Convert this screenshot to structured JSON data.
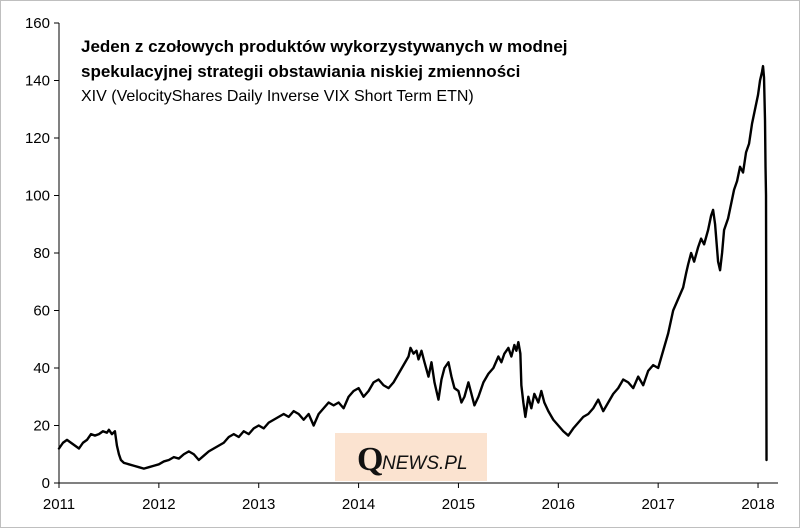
{
  "chart_data": {
    "type": "line",
    "title": "Jeden z czołowych produktów wykorzystywanych w modnej",
    "title_line2": "spekulacyjnej strategii obstawiania niskiej zmienności",
    "subtitle": "XIV (VelocityShares Daily Inverse VIX Short Term ETN)",
    "xlabel": "",
    "ylabel": "",
    "xlim": [
      2011.0,
      2018.2
    ],
    "ylim": [
      0,
      160
    ],
    "x_ticks": [
      "2011",
      "2012",
      "2013",
      "2014",
      "2015",
      "2016",
      "2017",
      "2018"
    ],
    "y_ticks": [
      "0",
      "20",
      "40",
      "60",
      "80",
      "100",
      "120",
      "140",
      "160"
    ],
    "grid": false,
    "legend": "none",
    "series": [
      {
        "color": "#000000",
        "points": [
          [
            2011.0,
            12.0
          ],
          [
            2011.04,
            14.0
          ],
          [
            2011.08,
            15.0
          ],
          [
            2011.12,
            14.0
          ],
          [
            2011.16,
            13.0
          ],
          [
            2011.2,
            12.0
          ],
          [
            2011.24,
            14.0
          ],
          [
            2011.28,
            15.0
          ],
          [
            2011.32,
            17.0
          ],
          [
            2011.36,
            16.5
          ],
          [
            2011.4,
            17.0
          ],
          [
            2011.44,
            18.0
          ],
          [
            2011.48,
            17.5
          ],
          [
            2011.5,
            18.5
          ],
          [
            2011.53,
            17.0
          ],
          [
            2011.56,
            18.0
          ],
          [
            2011.58,
            13.0
          ],
          [
            2011.6,
            10.0
          ],
          [
            2011.62,
            8.0
          ],
          [
            2011.65,
            7.0
          ],
          [
            2011.7,
            6.5
          ],
          [
            2011.75,
            6.0
          ],
          [
            2011.8,
            5.5
          ],
          [
            2011.85,
            5.0
          ],
          [
            2011.9,
            5.5
          ],
          [
            2011.95,
            6.0
          ],
          [
            2012.0,
            6.5
          ],
          [
            2012.05,
            7.5
          ],
          [
            2012.1,
            8.0
          ],
          [
            2012.15,
            9.0
          ],
          [
            2012.2,
            8.5
          ],
          [
            2012.25,
            10.0
          ],
          [
            2012.3,
            11.0
          ],
          [
            2012.35,
            10.0
          ],
          [
            2012.4,
            8.0
          ],
          [
            2012.45,
            9.5
          ],
          [
            2012.5,
            11.0
          ],
          [
            2012.55,
            12.0
          ],
          [
            2012.6,
            13.0
          ],
          [
            2012.65,
            14.0
          ],
          [
            2012.7,
            16.0
          ],
          [
            2012.75,
            17.0
          ],
          [
            2012.8,
            16.0
          ],
          [
            2012.85,
            18.0
          ],
          [
            2012.9,
            17.0
          ],
          [
            2012.95,
            19.0
          ],
          [
            2013.0,
            20.0
          ],
          [
            2013.05,
            19.0
          ],
          [
            2013.1,
            21.0
          ],
          [
            2013.15,
            22.0
          ],
          [
            2013.2,
            23.0
          ],
          [
            2013.25,
            24.0
          ],
          [
            2013.3,
            23.0
          ],
          [
            2013.35,
            25.0
          ],
          [
            2013.4,
            24.0
          ],
          [
            2013.45,
            22.0
          ],
          [
            2013.5,
            24.0
          ],
          [
            2013.55,
            20.0
          ],
          [
            2013.6,
            24.0
          ],
          [
            2013.65,
            26.0
          ],
          [
            2013.7,
            28.0
          ],
          [
            2013.75,
            27.0
          ],
          [
            2013.8,
            28.0
          ],
          [
            2013.85,
            26.0
          ],
          [
            2013.9,
            30.0
          ],
          [
            2013.95,
            32.0
          ],
          [
            2014.0,
            33.0
          ],
          [
            2014.05,
            30.0
          ],
          [
            2014.1,
            32.0
          ],
          [
            2014.15,
            35.0
          ],
          [
            2014.2,
            36.0
          ],
          [
            2014.25,
            34.0
          ],
          [
            2014.3,
            33.0
          ],
          [
            2014.35,
            35.0
          ],
          [
            2014.4,
            38.0
          ],
          [
            2014.45,
            41.0
          ],
          [
            2014.5,
            44.0
          ],
          [
            2014.52,
            47.0
          ],
          [
            2014.55,
            45.0
          ],
          [
            2014.58,
            46.0
          ],
          [
            2014.6,
            43.0
          ],
          [
            2014.63,
            46.0
          ],
          [
            2014.66,
            42.0
          ],
          [
            2014.7,
            37.0
          ],
          [
            2014.73,
            42.0
          ],
          [
            2014.76,
            35.0
          ],
          [
            2014.8,
            29.0
          ],
          [
            2014.83,
            36.0
          ],
          [
            2014.86,
            40.0
          ],
          [
            2014.9,
            42.0
          ],
          [
            2014.93,
            37.0
          ],
          [
            2014.96,
            33.0
          ],
          [
            2015.0,
            32.0
          ],
          [
            2015.03,
            28.0
          ],
          [
            2015.06,
            30.0
          ],
          [
            2015.1,
            35.0
          ],
          [
            2015.13,
            31.0
          ],
          [
            2015.16,
            27.0
          ],
          [
            2015.2,
            30.0
          ],
          [
            2015.25,
            35.0
          ],
          [
            2015.3,
            38.0
          ],
          [
            2015.35,
            40.0
          ],
          [
            2015.4,
            44.0
          ],
          [
            2015.43,
            42.0
          ],
          [
            2015.46,
            45.0
          ],
          [
            2015.5,
            47.0
          ],
          [
            2015.53,
            44.0
          ],
          [
            2015.56,
            48.0
          ],
          [
            2015.58,
            46.0
          ],
          [
            2015.6,
            49.0
          ],
          [
            2015.62,
            45.0
          ],
          [
            2015.63,
            34.0
          ],
          [
            2015.65,
            28.0
          ],
          [
            2015.67,
            23.0
          ],
          [
            2015.7,
            30.0
          ],
          [
            2015.73,
            26.0
          ],
          [
            2015.76,
            31.0
          ],
          [
            2015.8,
            28.0
          ],
          [
            2015.83,
            32.0
          ],
          [
            2015.86,
            28.0
          ],
          [
            2015.9,
            25.0
          ],
          [
            2015.95,
            22.0
          ],
          [
            2016.0,
            20.0
          ],
          [
            2016.05,
            18.0
          ],
          [
            2016.1,
            16.5
          ],
          [
            2016.15,
            19.0
          ],
          [
            2016.2,
            21.0
          ],
          [
            2016.25,
            23.0
          ],
          [
            2016.3,
            24.0
          ],
          [
            2016.35,
            26.0
          ],
          [
            2016.4,
            29.0
          ],
          [
            2016.45,
            25.0
          ],
          [
            2016.5,
            28.0
          ],
          [
            2016.55,
            31.0
          ],
          [
            2016.6,
            33.0
          ],
          [
            2016.65,
            36.0
          ],
          [
            2016.7,
            35.0
          ],
          [
            2016.75,
            33.0
          ],
          [
            2016.8,
            37.0
          ],
          [
            2016.85,
            34.0
          ],
          [
            2016.9,
            39.0
          ],
          [
            2016.95,
            41.0
          ],
          [
            2017.0,
            40.0
          ],
          [
            2017.05,
            46.0
          ],
          [
            2017.1,
            52.0
          ],
          [
            2017.15,
            60.0
          ],
          [
            2017.2,
            64.0
          ],
          [
            2017.25,
            68.0
          ],
          [
            2017.28,
            73.0
          ],
          [
            2017.3,
            76.0
          ],
          [
            2017.33,
            80.0
          ],
          [
            2017.36,
            77.0
          ],
          [
            2017.4,
            82.0
          ],
          [
            2017.43,
            85.0
          ],
          [
            2017.46,
            83.0
          ],
          [
            2017.5,
            88.0
          ],
          [
            2017.53,
            93.0
          ],
          [
            2017.55,
            95.0
          ],
          [
            2017.57,
            90.0
          ],
          [
            2017.6,
            77.0
          ],
          [
            2017.62,
            74.0
          ],
          [
            2017.64,
            80.0
          ],
          [
            2017.66,
            88.0
          ],
          [
            2017.7,
            92.0
          ],
          [
            2017.73,
            97.0
          ],
          [
            2017.76,
            102.0
          ],
          [
            2017.79,
            105.0
          ],
          [
            2017.82,
            110.0
          ],
          [
            2017.85,
            108.0
          ],
          [
            2017.88,
            115.0
          ],
          [
            2017.91,
            118.0
          ],
          [
            2017.94,
            125.0
          ],
          [
            2017.97,
            130.0
          ],
          [
            2018.0,
            135.0
          ],
          [
            2018.02,
            140.0
          ],
          [
            2018.04,
            143.0
          ],
          [
            2018.05,
            145.0
          ],
          [
            2018.06,
            141.0
          ],
          [
            2018.07,
            126.0
          ],
          [
            2018.075,
            110.0
          ],
          [
            2018.08,
            100.0
          ],
          [
            2018.085,
            8.0
          ]
        ]
      }
    ]
  },
  "watermark": {
    "prefix": "Q",
    "rest": "NEWS.PL"
  }
}
